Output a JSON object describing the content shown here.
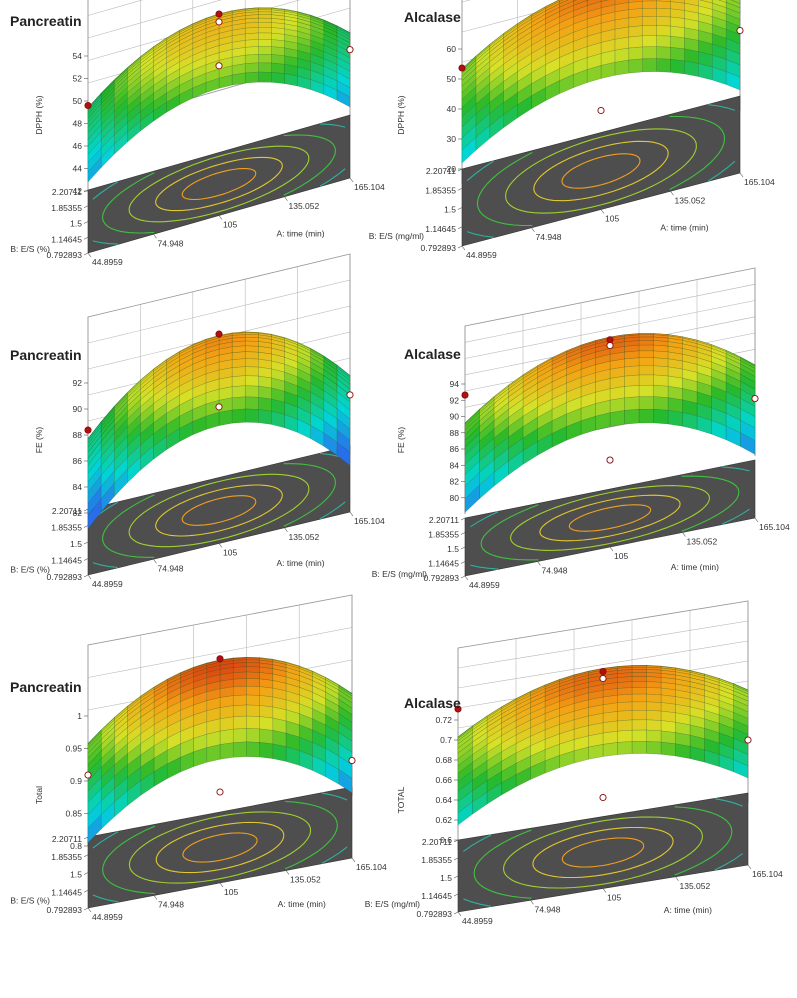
{
  "chart_data": [
    {
      "type": "surface3d",
      "title": "Pancreatin",
      "zlabel": "DPPH (%)",
      "xlabel": "A: time (min)",
      "ylabel": "B: E/S (%)",
      "zticks": [
        "42",
        "44",
        "46",
        "48",
        "50",
        "52",
        "54"
      ],
      "xticks": [
        "44.8959",
        "74.948",
        "105",
        "135.052",
        "165.104"
      ],
      "yticks": [
        "0.792893",
        "1.14645",
        "1.5",
        "1.85355",
        "2.20711"
      ],
      "zlim": [
        42,
        54
      ],
      "surface": {
        "center": 51.0,
        "curvature_a": 5.0,
        "curvature_b": 3.2
      },
      "design_points": [
        {
          "x": 105,
          "y": 1.5,
          "z": 51.6
        },
        {
          "x": 105,
          "y": 1.5,
          "z": 50.9
        },
        {
          "x": 105,
          "y": 1.5,
          "z": 47.0
        },
        {
          "x": 165.104,
          "y": 1.5,
          "z": 45.1
        },
        {
          "x": 44.8959,
          "y": 2.20711,
          "z": 44.0
        }
      ]
    },
    {
      "type": "surface3d",
      "title": "Alcalase",
      "zlabel": "DPPH (%)",
      "xlabel": "A: time (min)",
      "ylabel": "B: E/S (mg/ml)",
      "zticks": [
        "20",
        "30",
        "40",
        "50",
        "60"
      ],
      "xticks": [
        "44.8959",
        "74.948",
        "105",
        "135.052",
        "165.104"
      ],
      "yticks": [
        "0.792893",
        "1.14645",
        "1.5",
        "1.85355",
        "2.20711"
      ],
      "zlim": [
        15,
        60
      ],
      "surface": {
        "center": 54.0,
        "curvature_a": 16.0,
        "curvature_b": 16.0
      },
      "design_points": [
        {
          "x": 105,
          "y": 1.5,
          "z": 55.5
        },
        {
          "x": 105,
          "y": 1.5,
          "z": 54.2
        },
        {
          "x": 105,
          "y": 1.5,
          "z": 14.5
        },
        {
          "x": 165.104,
          "y": 1.5,
          "z": 29.0
        },
        {
          "x": 44.8959,
          "y": 2.20711,
          "z": 28.0
        }
      ]
    },
    {
      "type": "surface3d",
      "title": "Pancreatin",
      "zlabel": "FE (%)",
      "xlabel": "A: time (min)",
      "ylabel": "B: E/S (%)",
      "zticks": [
        "82",
        "84",
        "86",
        "88",
        "90",
        "92"
      ],
      "xticks": [
        "44.8959",
        "74.948",
        "105",
        "135.052",
        "165.104"
      ],
      "yticks": [
        "0.792893",
        "1.14645",
        "1.5",
        "1.85355",
        "2.20711"
      ],
      "zlim": [
        82,
        92
      ],
      "surface": {
        "center": 90.3,
        "curvature_a": 5.5,
        "curvature_b": 4.0
      },
      "design_points": [
        {
          "x": 105,
          "y": 1.5,
          "z": 90.8
        },
        {
          "x": 105,
          "y": 1.5,
          "z": 85.2
        },
        {
          "x": 165.104,
          "y": 1.5,
          "z": 83.7
        },
        {
          "x": 44.8959,
          "y": 2.20711,
          "z": 83.3
        }
      ]
    },
    {
      "type": "surface3d",
      "title": "Alcalase",
      "zlabel": "FE (%)",
      "xlabel": "A: time (min)",
      "ylabel": "B: E/S (mg/ml)",
      "zticks": [
        "80",
        "82",
        "84",
        "86",
        "88",
        "90",
        "92",
        "94"
      ],
      "xticks": [
        "44.8959",
        "74.948",
        "105",
        "135.052",
        "165.104"
      ],
      "yticks": [
        "0.792893",
        "1.14645",
        "1.5",
        "1.85355",
        "2.20711"
      ],
      "zlim": [
        78,
        94
      ],
      "surface": {
        "center": 92.2,
        "curvature_a": 7.0,
        "curvature_b": 7.0
      },
      "design_points": [
        {
          "x": 105,
          "y": 1.5,
          "z": 92.3
        },
        {
          "x": 105,
          "y": 1.5,
          "z": 91.6
        },
        {
          "x": 105,
          "y": 1.5,
          "z": 77.5
        },
        {
          "x": 165.104,
          "y": 1.5,
          "z": 81.5
        },
        {
          "x": 44.8959,
          "y": 2.20711,
          "z": 85.5
        }
      ]
    },
    {
      "type": "surface3d",
      "title": "Pancreatin",
      "zlabel": "Total",
      "xlabel": "A: time (min)",
      "ylabel": "B: E/S (%)",
      "zticks": [
        "0.8",
        "0.85",
        "0.9",
        "0.95",
        "1"
      ],
      "xticks": [
        "44.8959",
        "74.948",
        "105",
        "135.052",
        "165.104"
      ],
      "yticks": [
        "0.792893",
        "1.14645",
        "1.5",
        "1.85355",
        "2.20711"
      ],
      "zlim": [
        0.8,
        1.0
      ],
      "surface": {
        "center": 0.985,
        "curvature_a": 0.09,
        "curvature_b": 0.09
      },
      "design_points": [
        {
          "x": 105,
          "y": 1.5,
          "z": 0.995
        },
        {
          "x": 105,
          "y": 1.5,
          "z": 0.79
        },
        {
          "x": 165.104,
          "y": 1.5,
          "z": 0.8
        },
        {
          "x": 44.8959,
          "y": 2.20711,
          "z": 0.8
        }
      ]
    },
    {
      "type": "surface3d",
      "title": "Alcalase",
      "zlabel": "TOTAL",
      "xlabel": "A: time (min)",
      "ylabel": "B: E/S (mg/ml)",
      "zticks": [
        "0.6",
        "0.62",
        "0.64",
        "0.66",
        "0.68",
        "0.7",
        "0.72"
      ],
      "xticks": [
        "44.8959",
        "74.948",
        "105",
        "135.052",
        "165.104"
      ],
      "yticks": [
        "0.792893",
        "1.14645",
        "1.5",
        "1.85355",
        "2.20711"
      ],
      "zlim": [
        0.59,
        0.72
      ],
      "surface": {
        "center": 0.705,
        "curvature_a": 0.045,
        "curvature_b": 0.045
      },
      "design_points": [
        {
          "x": 105,
          "y": 1.5,
          "z": 0.709
        },
        {
          "x": 105,
          "y": 1.5,
          "z": 0.702
        },
        {
          "x": 105,
          "y": 1.5,
          "z": 0.583
        },
        {
          "x": 165.104,
          "y": 1.5,
          "z": 0.617
        },
        {
          "x": 44.8959,
          "y": 2.20711,
          "z": 0.659
        }
      ]
    }
  ]
}
